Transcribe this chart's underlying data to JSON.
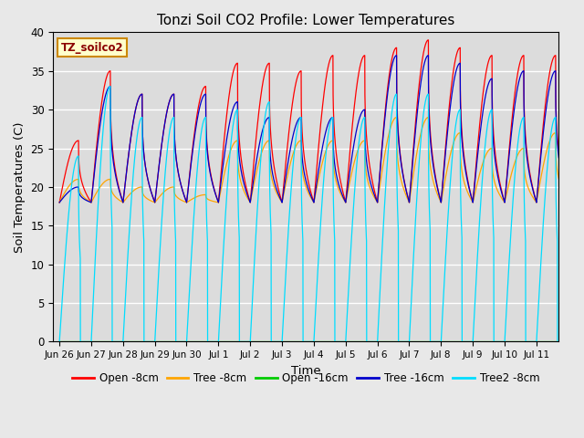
{
  "title": "Tonzi Soil CO2 Profile: Lower Temperatures",
  "ylabel": "Soil Temperatures (C)",
  "xlabel": "Time",
  "legend_label": "TZ_soilco2",
  "ylim": [
    0,
    40
  ],
  "yticks": [
    0,
    5,
    10,
    15,
    20,
    25,
    30,
    35,
    40
  ],
  "bg_color": "#dcdcdc",
  "fig_color": "#e8e8e8",
  "grid_color": "white",
  "series": [
    {
      "name": "Open -8cm",
      "color": "#ff0000"
    },
    {
      "name": "Tree -8cm",
      "color": "#ffa500"
    },
    {
      "name": "Open -16cm",
      "color": "#00cc00"
    },
    {
      "name": "Tree -16cm",
      "color": "#0000cc"
    },
    {
      "name": "Tree2 -8cm",
      "color": "#00ddff"
    }
  ],
  "xtick_labels": [
    "Jun 26",
    "Jun 27",
    "Jun 28",
    "Jun 29",
    "Jun 30",
    "Jul 1",
    "Jul 2",
    "Jul 3",
    "Jul 4",
    "Jul 5",
    "Jul 6",
    "Jul 7",
    "Jul 8",
    "Jul 9",
    "Jul 10",
    "Jul 11"
  ],
  "num_days": 16,
  "pts_per_day": 200,
  "peaks_open8": [
    26,
    35,
    32,
    32,
    33,
    36,
    36,
    35,
    37,
    37,
    38,
    39,
    38,
    37,
    37,
    37
  ],
  "peaks_tree8": [
    21,
    21,
    20,
    20,
    19,
    26,
    26,
    26,
    26,
    26,
    29,
    29,
    27,
    25,
    25,
    27
  ],
  "peaks_open16": [
    0,
    0,
    0,
    0,
    0,
    0,
    0,
    0,
    0,
    0,
    0,
    0,
    0,
    0,
    0,
    0
  ],
  "peaks_tree16": [
    20,
    33,
    32,
    32,
    32,
    31,
    29,
    29,
    29,
    30,
    37,
    37,
    36,
    34,
    35,
    35
  ],
  "peaks_tree28": [
    24,
    33,
    29,
    29,
    29,
    30,
    31,
    29,
    29,
    29,
    32,
    32,
    30,
    30,
    29,
    29
  ],
  "trough_open8": 18,
  "trough_tree8": 18,
  "trough_open16": 0,
  "trough_tree16": 18,
  "trough_tree28": 0
}
